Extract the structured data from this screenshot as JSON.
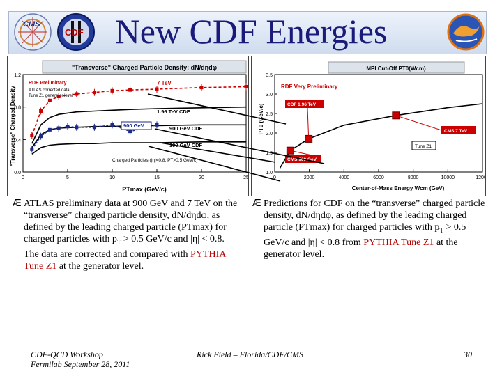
{
  "title": "New CDF Energies",
  "left_chart": {
    "title": "\"Transverse\" Charged Particle Density: dN/dηdφ",
    "ylabel": "\"Transverse\" Charged Density",
    "xlabel": "PTmax  (GeV/c)",
    "note1": "RDF Preliminary",
    "note2": "ATLAS corrected data",
    "note3": "Tune Z1 generator level",
    "cut_label": "Charged Particles (|η|<0.8, PT>0.5 GeV/c)",
    "yticks": [
      "1.2",
      "0.8",
      "0.4",
      "0.0"
    ],
    "xticks": [
      "0",
      "5",
      "10",
      "15",
      "20",
      "25"
    ],
    "series_labels": [
      "7 TeV",
      "1.96 TeV CDF",
      "900 GeV",
      "900 GeV CDF",
      "300 GeV CDF"
    ]
  },
  "right_chart": {
    "title": "MPI Cut-Off PT0(Wcm)",
    "ylabel": "PT0  (GeV/c)",
    "xlabel": "Center-of-Mass Energy Wcm  (GeV)",
    "note": "RDF Very Preliminary",
    "yticks": [
      "3.5",
      "3.0",
      "2.5",
      "2.0",
      "1.5",
      "1.0"
    ],
    "xticks": [
      "0",
      "2000",
      "4000",
      "6000",
      "8000",
      "10000",
      "12000"
    ],
    "point_labels": [
      "CDF 1.96 TeV",
      "CMS 7 TeV",
      "Tune Z1",
      "CMS 900 GeV"
    ]
  },
  "chart_data": [
    {
      "type": "line",
      "xlabel": "PTmax  (GeV/c)",
      "ylabel": "\"Transverse\" Charged Density",
      "xlim": [
        0,
        25
      ],
      "ylim": [
        0.0,
        1.2
      ],
      "series": [
        {
          "name": "7 TeV",
          "x": [
            1,
            2,
            3,
            4,
            6,
            8,
            10,
            12,
            15,
            20,
            25
          ],
          "y": [
            0.45,
            0.75,
            0.88,
            0.93,
            0.96,
            0.98,
            1.0,
            1.01,
            1.02,
            1.04,
            1.05
          ]
        },
        {
          "name": "1.96 TeV CDF",
          "x": [
            1,
            2,
            3,
            4,
            6,
            8,
            10,
            12,
            15,
            20,
            25
          ],
          "y": [
            0.35,
            0.58,
            0.67,
            0.71,
            0.74,
            0.75,
            0.76,
            0.77,
            0.78,
            0.79,
            0.8
          ]
        },
        {
          "name": "900 GeV CDF",
          "x": [
            1,
            2,
            3,
            4,
            6,
            8,
            10,
            12,
            15,
            20,
            25
          ],
          "y": [
            0.3,
            0.46,
            0.52,
            0.54,
            0.55,
            0.56,
            0.56,
            0.57,
            0.57,
            0.58,
            0.58
          ]
        },
        {
          "name": "300 GeV CDF",
          "x": [
            1,
            2,
            3,
            4,
            6,
            8,
            10,
            12,
            15,
            20,
            25
          ],
          "y": [
            0.22,
            0.3,
            0.33,
            0.34,
            0.35,
            0.35,
            0.36,
            0.36,
            0.36,
            0.37,
            0.37
          ]
        },
        {
          "name": "900 GeV",
          "x": [
            1,
            2,
            3,
            4,
            5,
            6,
            8,
            10,
            12,
            15
          ],
          "y": [
            0.28,
            0.44,
            0.52,
            0.54,
            0.56,
            0.55,
            0.55,
            0.58,
            0.5,
            0.58
          ]
        }
      ]
    },
    {
      "type": "scatter",
      "xlabel": "Center-of-Mass Energy Wcm  (GeV)",
      "ylabel": "PT0  (GeV/c)",
      "xlim": [
        0,
        12000
      ],
      "ylim": [
        1.0,
        3.5
      ],
      "series": [
        {
          "name": "Tune Z1",
          "x": [
            300,
            900,
            1960,
            4000,
            7000,
            10000,
            12000
          ],
          "y": [
            1.1,
            1.55,
            1.85,
            2.2,
            2.45,
            2.65,
            2.75
          ]
        },
        {
          "name": "points",
          "x": [
            900,
            1960,
            7000
          ],
          "y": [
            1.55,
            1.85,
            2.45
          ]
        }
      ]
    }
  ],
  "bullet_left": {
    "marker": "Æ",
    "t1": "ATLAS preliminary data at 900 GeV and 7 TeV on the “transverse” charged particle density, dN/dηdφ, as defined by the leading charged particle (PTmax) for charged particles with p",
    "sub": "T",
    "t2": " > 0.5 GeV/c and |η| < 0.8. The data are corrected and compared with ",
    "hl": "PYTHIA Tune Z1",
    "t3": " at the generator level."
  },
  "bullet_right": {
    "marker": "Æ",
    "t1": "Predictions for CDF  on the “transverse” charged particle density, dN/dηdφ, as defined by the leading charged particle (PTmax) for charged particles with p",
    "sub": "T",
    "t2": " > 0.5 GeV/c and |η| < 0.8 from ",
    "hl": "PYTHIA Tune Z1",
    "t3": " at the generator level."
  },
  "footer": {
    "left1": "CDF-QCD Workshop",
    "left2": "Fermilab September 28, 2011",
    "center": "Rick Field – Florida/CDF/CMS",
    "page": "30"
  },
  "colors": {
    "title": "#1a1a7a",
    "red": "#cc0000",
    "navy": "#1c2a8c",
    "highlight": "#b20000"
  }
}
